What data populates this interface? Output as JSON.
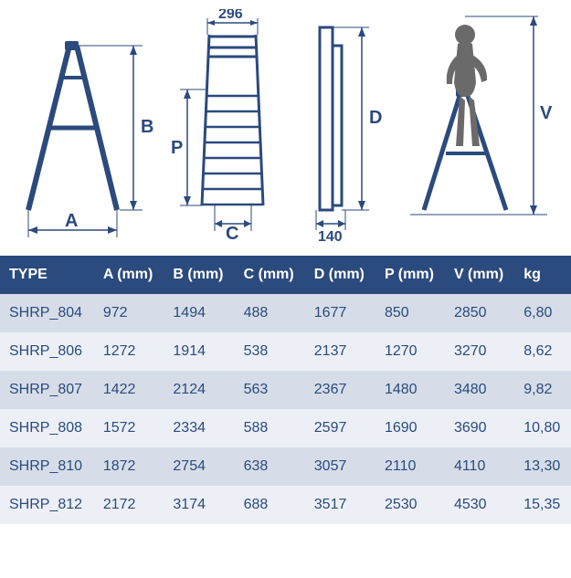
{
  "diagrams": {
    "top_width_label": "296",
    "depth_label": "140",
    "letters": {
      "A": "A",
      "B": "B",
      "C": "C",
      "D": "D",
      "P": "P",
      "V": "V"
    }
  },
  "table": {
    "header_bg": "#2b4a7d",
    "header_fg": "#ffffff",
    "row_bg_odd": "#d6dde8",
    "row_bg_even": "#ecf0f6",
    "row_fg": "#2b4a7d",
    "fontsize": 16,
    "columns": [
      "TYPE",
      "A (mm)",
      "B (mm)",
      "C (mm)",
      "D (mm)",
      "P (mm)",
      "V (mm)",
      "kg"
    ],
    "rows": [
      [
        "SHRP_804",
        "972",
        "1494",
        "488",
        "1677",
        "850",
        "2850",
        "6,80"
      ],
      [
        "SHRP_806",
        "1272",
        "1914",
        "538",
        "2137",
        "1270",
        "3270",
        "8,62"
      ],
      [
        "SHRP_807",
        "1422",
        "2124",
        "563",
        "2367",
        "1480",
        "3480",
        "9,82"
      ],
      [
        "SHRP_808",
        "1572",
        "2334",
        "588",
        "2597",
        "1690",
        "3690",
        "10,80"
      ],
      [
        "SHRP_810",
        "1872",
        "2754",
        "638",
        "3057",
        "2110",
        "4110",
        "13,30"
      ],
      [
        "SHRP_812",
        "2172",
        "3174",
        "688",
        "3517",
        "2530",
        "4530",
        "15,35"
      ]
    ]
  }
}
